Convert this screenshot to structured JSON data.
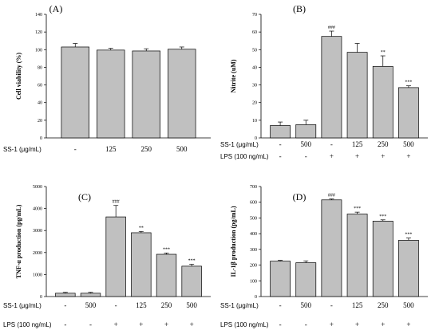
{
  "chart_data": [
    {
      "type": "bar",
      "panel": "(A)",
      "ylabel": "Cell viability (%)",
      "ylim": [
        0,
        140
      ],
      "yticks": [
        0,
        20,
        40,
        60,
        80,
        100,
        120,
        140
      ],
      "values": [
        103,
        99.5,
        98.5,
        100.5
      ],
      "errors": [
        4,
        2,
        2.5,
        2.5
      ],
      "sig": [
        "",
        "",
        "",
        ""
      ],
      "rows": [
        {
          "label": "SS-1 (μg/mL)",
          "values": [
            "-",
            "125",
            "250",
            "500"
          ]
        }
      ]
    },
    {
      "type": "bar",
      "panel": "(B)",
      "ylabel": "Nitrite (uM)",
      "ylim": [
        0,
        70
      ],
      "yticks": [
        0,
        10,
        20,
        30,
        40,
        50,
        60,
        70
      ],
      "values": [
        7,
        7.5,
        57.5,
        48.5,
        40.5,
        28.5
      ],
      "errors": [
        2,
        2.5,
        3,
        5,
        6,
        1
      ],
      "sig": [
        "",
        "",
        "###",
        "",
        "**",
        "***"
      ],
      "rows": [
        {
          "label": "SS-1 (μg/mL)",
          "values": [
            "-",
            "500",
            "-",
            "125",
            "250",
            "500"
          ]
        },
        {
          "label": "LPS (100 ng/mL)",
          "values": [
            "-",
            "-",
            "+",
            "+",
            "+",
            "+"
          ]
        }
      ]
    },
    {
      "type": "bar",
      "panel": "(C)",
      "ylabel": "TNF-α production (pg/mL)",
      "ylim": [
        0,
        5000
      ],
      "yticks": [
        0,
        1000,
        2000,
        3000,
        4000,
        5000
      ],
      "values": [
        150,
        150,
        3620,
        2900,
        1920,
        1380
      ],
      "errors": [
        40,
        40,
        520,
        60,
        60,
        90
      ],
      "sig": [
        "",
        "",
        "###",
        "**",
        "***",
        "***"
      ],
      "rows": [
        {
          "label": "SS-1 (μg/mL)",
          "values": [
            "-",
            "500",
            "-",
            "125",
            "250",
            "500"
          ]
        },
        {
          "label": "LPS (100 ng/mL)",
          "values": [
            "-",
            "-",
            "+",
            "+",
            "+",
            "+"
          ]
        }
      ]
    },
    {
      "type": "bar",
      "panel": "(D)",
      "ylabel": "IL-1β production (pg/mL)",
      "ylim": [
        0,
        700
      ],
      "yticks": [
        0,
        100,
        200,
        300,
        400,
        500,
        600,
        700
      ],
      "values": [
        225,
        215,
        615,
        525,
        480,
        358
      ],
      "errors": [
        5,
        12,
        6,
        12,
        8,
        14
      ],
      "sig": [
        "",
        "",
        "###",
        "***",
        "***",
        "***"
      ],
      "rows": [
        {
          "label": "SS-1 (μg/mL)",
          "values": [
            "-",
            "500",
            "-",
            "125",
            "250",
            "500"
          ]
        },
        {
          "label": "LPS (100 ng/mL)",
          "values": [
            "-",
            "-",
            "+",
            "+",
            "+",
            "+"
          ]
        }
      ]
    }
  ],
  "colors": {
    "bar_fill": "#c0c0c0",
    "bar_stroke": "#000000"
  }
}
